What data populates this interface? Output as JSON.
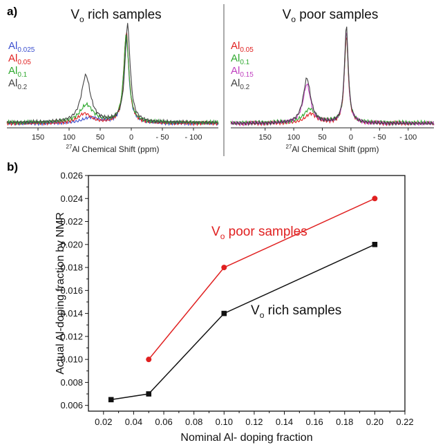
{
  "panel_labels": {
    "a": "a)",
    "b": "b)"
  },
  "chart_data": [
    {
      "type": "line",
      "panel": "a) left",
      "title": {
        "main": "V",
        "sub": "o",
        "rest": " rich samples"
      },
      "xlabel": {
        "sup": "27",
        "text": "Al Chemical Shift (ppm)"
      },
      "x_reversed": true,
      "xlim": [
        200,
        -140
      ],
      "xticks": [
        150,
        100,
        50,
        0,
        -50,
        -100
      ],
      "xtick_labels": [
        "150",
        "100",
        "50",
        "0",
        "- 50",
        "- 100"
      ],
      "yaxis": "none",
      "legend": [
        {
          "base": "Al",
          "sub": "0.025",
          "color": "#3b4fcf"
        },
        {
          "base": "Al",
          "sub": "0.05",
          "color": "#e02020"
        },
        {
          "base": "Al",
          "sub": "0.1",
          "color": "#2ea82e"
        },
        {
          "base": "Al",
          "sub": "0.2",
          "color": "#404040"
        }
      ],
      "series": [
        {
          "color": "#3b4fcf",
          "baseline": 0.03,
          "peaks": [
            {
              "c": 65,
              "h": 0.06,
              "w": 16
            },
            {
              "c": 8,
              "h": 0.88,
              "w": 5
            }
          ]
        },
        {
          "color": "#e02020",
          "baseline": 0.03,
          "peaks": [
            {
              "c": 75,
              "h": 0.1,
              "w": 13
            },
            {
              "c": 8,
              "h": 0.93,
              "w": 5
            }
          ]
        },
        {
          "color": "#2ea82e",
          "baseline": 0.04,
          "peaks": [
            {
              "c": 72,
              "h": 0.18,
              "w": 13
            },
            {
              "c": 8,
              "h": 0.9,
              "w": 5
            }
          ]
        },
        {
          "color": "#404040",
          "baseline": 0.04,
          "peaks": [
            {
              "c": 73,
              "h": 0.48,
              "w": 9
            },
            {
              "c": 6,
              "h": 1.0,
              "w": 5
            }
          ]
        }
      ]
    },
    {
      "type": "line",
      "panel": "a) right",
      "title": {
        "main": "V",
        "sub": "o",
        "rest": " poor samples"
      },
      "xlabel": {
        "sup": "27",
        "text": "Al Chemical Shift (ppm)"
      },
      "x_reversed": true,
      "xlim": [
        210,
        -145
      ],
      "xticks": [
        150,
        100,
        50,
        0,
        -50,
        -100
      ],
      "xtick_labels": [
        "150",
        "100",
        "50",
        "0",
        "- 50",
        "- 100"
      ],
      "yaxis": "none",
      "legend": [
        {
          "base": "Al",
          "sub": "0.05",
          "color": "#e02020"
        },
        {
          "base": "Al",
          "sub": "0.1",
          "color": "#2ea82e"
        },
        {
          "base": "Al",
          "sub": "0.15",
          "color": "#c040c0"
        },
        {
          "base": "Al",
          "sub": "0.2",
          "color": "#404040"
        }
      ],
      "series": [
        {
          "color": "#e02020",
          "baseline": 0.03,
          "peaks": [
            {
              "c": 70,
              "h": 0.1,
              "w": 12
            },
            {
              "c": 8,
              "h": 0.9,
              "w": 4
            }
          ]
        },
        {
          "color": "#2ea82e",
          "baseline": 0.04,
          "peaks": [
            {
              "c": 72,
              "h": 0.14,
              "w": 12
            },
            {
              "c": 8,
              "h": 0.92,
              "w": 4
            }
          ]
        },
        {
          "color": "#c040c0",
          "baseline": 0.03,
          "peaks": [
            {
              "c": 77,
              "h": 0.4,
              "w": 8
            },
            {
              "c": 8,
              "h": 0.96,
              "w": 4
            }
          ]
        },
        {
          "color": "#404040",
          "baseline": 0.03,
          "peaks": [
            {
              "c": 77,
              "h": 0.46,
              "w": 8
            },
            {
              "c": 8,
              "h": 1.0,
              "w": 4
            }
          ]
        }
      ]
    },
    {
      "type": "line",
      "panel": "b)",
      "xlabel": "Nominal Al- doping fraction",
      "ylabel": "Actual Al-doping fraction by NMR",
      "xlim": [
        0.01,
        0.22
      ],
      "ylim": [
        0.0055,
        0.026
      ],
      "xticks": [
        "0.02",
        "0.04",
        "0.06",
        "0.08",
        "0.10",
        "0.12",
        "0.14",
        "0.16",
        "0.18",
        "0.20",
        "0.22"
      ],
      "yticks": [
        "0.006",
        "0.008",
        "0.010",
        "0.012",
        "0.014",
        "0.016",
        "0.018",
        "0.020",
        "0.022",
        "0.024",
        "0.026"
      ],
      "grid": false,
      "series": [
        {
          "label": {
            "main": "V",
            "sub": "o",
            "rest": " poor samples"
          },
          "color": "#e02020",
          "marker": "circle",
          "x": [
            0.05,
            0.1,
            0.2
          ],
          "y": [
            0.01,
            0.018,
            0.024
          ]
        },
        {
          "label": {
            "main": "V",
            "sub": "o",
            "rest": " rich samples"
          },
          "color": "#111111",
          "marker": "square",
          "x": [
            0.025,
            0.05,
            0.1,
            0.2
          ],
          "y": [
            0.0065,
            0.007,
            0.014,
            0.02
          ]
        }
      ]
    }
  ]
}
